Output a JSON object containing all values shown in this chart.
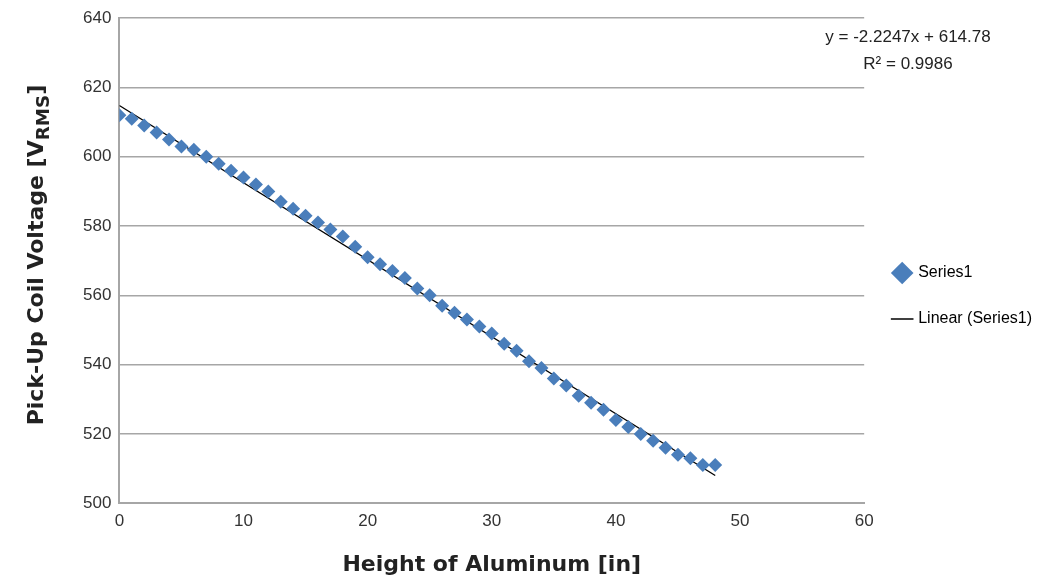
{
  "chart_data": {
    "type": "scatter",
    "xlabel": "Height of Aluminum [in]",
    "ylabel": "Pick-Up Coil Voltage [V$_{RMS}$]",
    "x": [
      0,
      1,
      2,
      3,
      4,
      5,
      6,
      7,
      8,
      9,
      10,
      11,
      12,
      13,
      14,
      15,
      16,
      17,
      18,
      19,
      20,
      21,
      22,
      23,
      24,
      25,
      26,
      27,
      28,
      29,
      30,
      31,
      32,
      33,
      34,
      35,
      36,
      37,
      38,
      39,
      40,
      41,
      42,
      43,
      44,
      45,
      46,
      47,
      48
    ],
    "series": [
      {
        "name": "Series1",
        "color": "#4a7ebb",
        "marker": "diamond",
        "values": [
          612,
          611,
          609,
          607,
          605,
          603,
          602,
          600,
          598,
          596,
          594,
          592,
          590,
          587,
          585,
          583,
          581,
          579,
          577,
          574,
          571,
          569,
          567,
          565,
          562,
          560,
          557,
          555,
          553,
          551,
          549,
          546,
          544,
          541,
          539,
          536,
          534,
          531,
          529,
          527,
          524,
          522,
          520,
          518,
          516,
          514,
          513,
          511,
          511
        ]
      },
      {
        "name": "Linear (Series1)",
        "type": "line",
        "color": "#000000",
        "marker": "none",
        "x": [
          0,
          48
        ],
        "values": [
          614.78,
          508.0
        ]
      }
    ],
    "annotations": [
      "y = -2.2247x + 614.78",
      "R² = 0.9986"
    ],
    "xlim": [
      0,
      60
    ],
    "xticks": [
      0,
      10,
      20,
      30,
      40,
      50,
      60
    ],
    "ylim": [
      500,
      640
    ],
    "yticks": [
      500,
      520,
      540,
      560,
      580,
      600,
      620,
      640
    ],
    "grid": "y",
    "legend": "right"
  }
}
